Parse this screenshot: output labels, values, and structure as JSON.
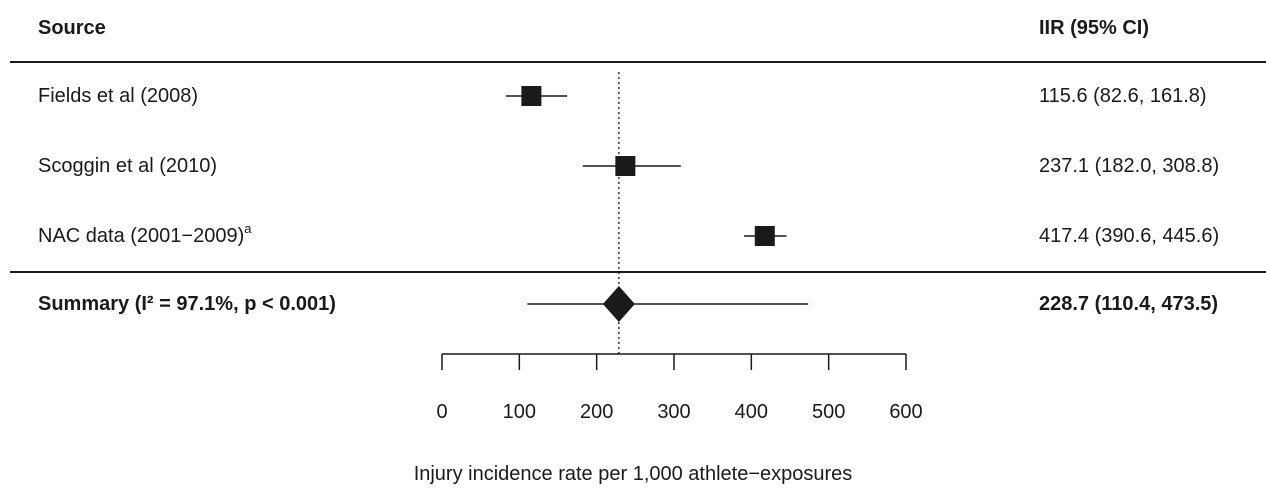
{
  "header": {
    "source_label": "Source",
    "estimate_label": "IIR (95% CI)"
  },
  "chart_data": {
    "type": "forest",
    "xlabel": "Injury incidence rate per 1,000 athlete−exposures",
    "xlim": [
      0,
      600
    ],
    "xticks": [
      0,
      100,
      200,
      300,
      400,
      500,
      600
    ],
    "reference_line": 228.7,
    "studies": [
      {
        "label": "Fields et al (2008)",
        "superscript": "",
        "estimate": 115.6,
        "lower": 82.6,
        "upper": 161.8,
        "ci_text": "115.6 (82.6, 161.8)"
      },
      {
        "label": "Scoggin et al (2010)",
        "superscript": "",
        "estimate": 237.1,
        "lower": 182.0,
        "upper": 308.8,
        "ci_text": "237.1 (182.0, 308.8)"
      },
      {
        "label": "NAC data (2001−2009)",
        "superscript": "a",
        "estimate": 417.4,
        "lower": 390.6,
        "upper": 445.6,
        "ci_text": "417.4 (390.6, 445.6)"
      }
    ],
    "summary": {
      "label": "Summary (I² = 97.1%, p < 0.001)",
      "estimate": 228.7,
      "lower": 110.4,
      "upper": 473.5,
      "ci_text": "228.7 (110.4, 473.5)"
    }
  }
}
